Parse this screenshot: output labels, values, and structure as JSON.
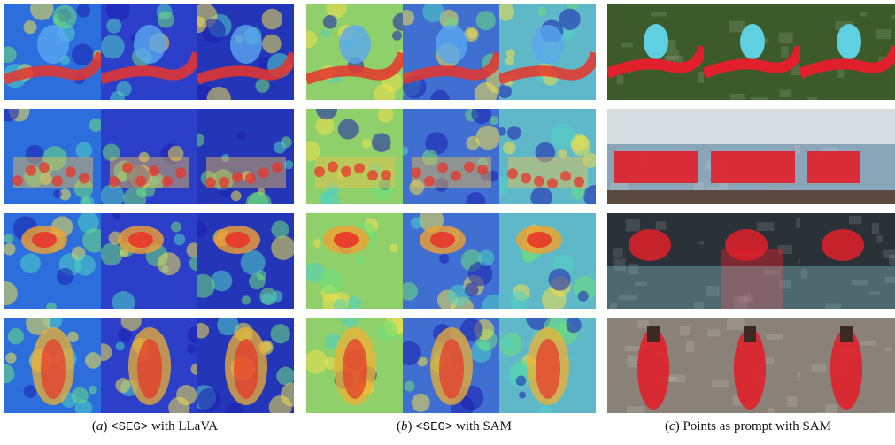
{
  "figure": {
    "panels": [
      {
        "id": "a",
        "letter": "a",
        "token": "<SEG>",
        "text": " with LLaVA",
        "type": "heatmap-llava"
      },
      {
        "id": "b",
        "letter": "b",
        "token": "<SEG>",
        "text": " with SAM",
        "type": "heatmap-sam"
      },
      {
        "id": "c",
        "letter": "c",
        "token": "",
        "text": " Points as prompt with SAM",
        "type": "mask"
      }
    ],
    "row_subjects": [
      "bird-on-branch",
      "horse-carriage",
      "swimming-cap-in-water",
      "cicada-on-bark"
    ],
    "colors": {
      "heat_low": "#1b1fb0",
      "heat_mid": "#4fd1c5",
      "heat_high": "#e8352a",
      "mask_red": "#e0202a"
    }
  }
}
